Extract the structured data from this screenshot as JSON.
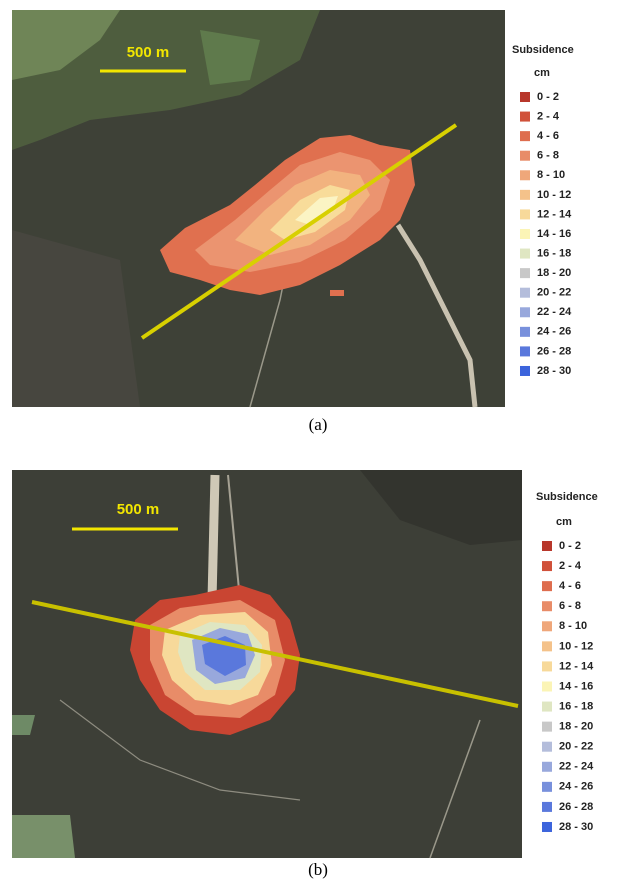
{
  "panels": [
    {
      "scale_label": "500 m",
      "caption": "(a)",
      "legend": {
        "title": "Subsidence",
        "unit": "cm",
        "items": [
          {
            "label": "0 - 2",
            "color": "#b8372b"
          },
          {
            "label": "2 - 4",
            "color": "#d0513a"
          },
          {
            "label": "4 - 6",
            "color": "#de6d4e"
          },
          {
            "label": "6 - 8",
            "color": "#e88c68"
          },
          {
            "label": "8 - 10",
            "color": "#efa77a"
          },
          {
            "label": "10 - 12",
            "color": "#f4c28a"
          },
          {
            "label": "12 - 14",
            "color": "#f7d99a"
          },
          {
            "label": "14 - 16",
            "color": "#fbf4b6"
          },
          {
            "label": "16 - 18",
            "color": "#dfe6c2"
          },
          {
            "label": "18 - 20",
            "color": "#c8c8c8"
          },
          {
            "label": "20 - 22",
            "color": "#b4bddb"
          },
          {
            "label": "22 - 24",
            "color": "#98a8dc"
          },
          {
            "label": "24 - 26",
            "color": "#7890dc"
          },
          {
            "label": "26 - 28",
            "color": "#5a78dc"
          },
          {
            "label": "28 - 30",
            "color": "#3c64dc"
          }
        ]
      }
    },
    {
      "scale_label": "500 m",
      "caption": "(b)",
      "legend": {
        "title": "Subsidence",
        "unit": "cm",
        "items": [
          {
            "label": "0 - 2",
            "color": "#b8372b"
          },
          {
            "label": "2 - 4",
            "color": "#d0513a"
          },
          {
            "label": "4 - 6",
            "color": "#de6d4e"
          },
          {
            "label": "6 - 8",
            "color": "#e88c68"
          },
          {
            "label": "8 - 10",
            "color": "#efa77a"
          },
          {
            "label": "10 - 12",
            "color": "#f4c28a"
          },
          {
            "label": "12 - 14",
            "color": "#f7d99a"
          },
          {
            "label": "14 - 16",
            "color": "#fbf4b6"
          },
          {
            "label": "16 - 18",
            "color": "#dfe6c2"
          },
          {
            "label": "18 - 20",
            "color": "#c8c8c8"
          },
          {
            "label": "20 - 22",
            "color": "#b4bddb"
          },
          {
            "label": "22 - 24",
            "color": "#98a8dc"
          },
          {
            "label": "24 - 26",
            "color": "#7890dc"
          },
          {
            "label": "26 - 28",
            "color": "#5a78dc"
          },
          {
            "label": "28 - 30",
            "color": "#3c64dc"
          }
        ]
      }
    }
  ]
}
